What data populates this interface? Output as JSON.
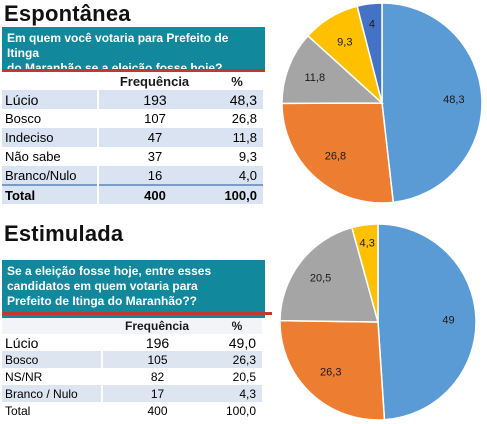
{
  "panels": [
    {
      "heading": "Espontânea",
      "question_lines": [
        "Em quem você votaria para Prefeito de Itinga",
        "do Maranhão se a eleição fosse hoje?"
      ],
      "headers": [
        "",
        "Frequência",
        "%"
      ],
      "rows": [
        {
          "label": "Lúcio",
          "freq": "193",
          "pct": "48,3"
        },
        {
          "label": "Bosco",
          "freq": "107",
          "pct": "26,8"
        },
        {
          "label": "Indeciso",
          "freq": "47",
          "pct": "11,8"
        },
        {
          "label": "Não sabe",
          "freq": "37",
          "pct": "9,3"
        },
        {
          "label": "Branco/Nulo",
          "freq": "16",
          "pct": "4,0"
        }
      ],
      "total": {
        "label": "Total",
        "freq": "400",
        "pct": "100,0"
      }
    },
    {
      "heading": "Estimulada",
      "question_lines": [
        "Se a eleição fosse hoje, entre esses",
        "candidatos em quem votaria para",
        "Prefeito de Itinga do Maranhão??"
      ],
      "headers": [
        "",
        "Frequência",
        "%"
      ],
      "rows": [
        {
          "label": "Lúcio",
          "freq": "196",
          "pct": "49,0"
        },
        {
          "label": "Bosco",
          "freq": "105",
          "pct": "26,3"
        },
        {
          "label": "NS/NR",
          "freq": "82",
          "pct": "20,5"
        },
        {
          "label": "Branco / Nulo",
          "freq": "17",
          "pct": "4,3"
        }
      ],
      "total": {
        "label": "Total",
        "freq": "400",
        "pct": "100,0"
      }
    }
  ],
  "colors": {
    "question_bg": "#11889c",
    "rule": "#c0392b",
    "slice_blue": "#5b9bd5",
    "slice_orange": "#ed7d31",
    "slice_gray": "#a5a5a5",
    "slice_yellow": "#ffc000",
    "slice_darkblue": "#4472c4"
  },
  "chart_data": [
    {
      "type": "pie",
      "values": [
        48.3,
        26.8,
        11.8,
        9.3,
        4
      ],
      "labels": [
        "48,3",
        "26,8",
        "11,8",
        "9,3",
        "4"
      ],
      "colors": [
        "#5b9bd5",
        "#ed7d31",
        "#a5a5a5",
        "#ffc000",
        "#4472c4"
      ]
    },
    {
      "type": "pie",
      "values": [
        49,
        26.3,
        20.5,
        4.3
      ],
      "labels": [
        "49",
        "26,3",
        "20,5",
        "4,3"
      ],
      "colors": [
        "#5b9bd5",
        "#ed7d31",
        "#a5a5a5",
        "#ffc000"
      ]
    }
  ]
}
